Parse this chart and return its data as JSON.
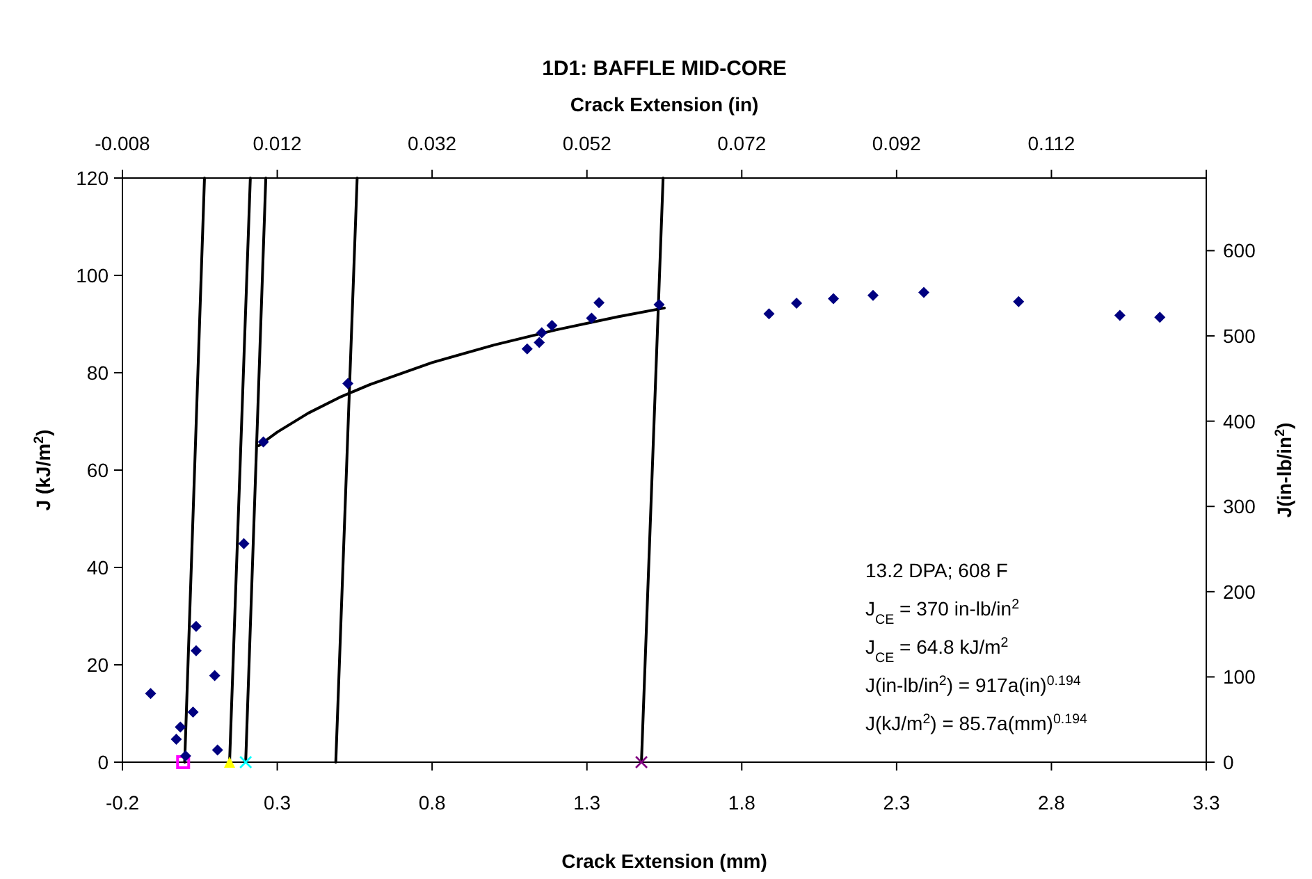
{
  "chart_data": {
    "type": "scatter",
    "title": "1D1: BAFFLE MID-CORE",
    "xlabel": "Crack Extension (mm)",
    "x2label": "Crack Extension (in)",
    "ylabel": "J (kJ/m$^{2}$)",
    "y2label": "J(in-lb/in$^{2}$)",
    "xlim": [
      -0.2,
      3.3
    ],
    "xticks": [
      -0.2,
      0.3,
      0.8,
      1.3,
      1.8,
      2.3,
      2.8,
      3.3
    ],
    "x2lim": [
      -0.008,
      0.132
    ],
    "x2ticks": [
      -0.008,
      0.012,
      0.032,
      0.052,
      0.072,
      0.092,
      0.112,
      {
        "value": 0.132,
        "label": null
      }
    ],
    "ylim": [
      0,
      120
    ],
    "yticks": [
      0,
      20,
      40,
      60,
      80,
      100,
      120
    ],
    "y2lim": [
      0,
      685.2
    ],
    "y2ticks": [
      0,
      100,
      200,
      300,
      400,
      500,
      600
    ],
    "grid": false,
    "marker": "diamond",
    "series": [
      {
        "color": "#000080",
        "x": [
          -0.109,
          -0.026,
          -0.013,
          0.004,
          0.028,
          0.038,
          0.038,
          0.098,
          0.107,
          0.192,
          0.255,
          0.528,
          1.107,
          1.146,
          1.154,
          1.187,
          1.315,
          1.339,
          1.533,
          1.888,
          1.977,
          2.096,
          2.224,
          2.388,
          2.694,
          3.021,
          3.15
        ],
        "values": [
          14.1,
          4.7,
          7.2,
          1.3,
          10.3,
          22.9,
          27.9,
          17.8,
          2.5,
          44.9,
          65.8,
          77.8,
          84.9,
          86.2,
          88.2,
          89.7,
          91.2,
          94.4,
          94.0,
          92.1,
          94.3,
          95.2,
          95.9,
          96.5,
          94.6,
          91.8,
          91.4
        ]
      },
      {
        "type": "line",
        "color": "#000000",
        "marker": "none",
        "x": [
          0.24,
          0.3,
          0.4,
          0.5,
          0.6,
          0.8,
          1.0,
          1.2,
          1.4,
          1.55
        ],
        "values": [
          65.0,
          67.8,
          71.7,
          74.9,
          77.6,
          82.1,
          85.7,
          88.8,
          91.5,
          93.3
        ]
      },
      {
        "type": "line",
        "color": "#000000",
        "marker": "none",
        "x": [
          0.001,
          0.065
        ],
        "values": [
          0,
          120
        ]
      },
      {
        "type": "line",
        "color": "#000000",
        "marker": "none",
        "x": [
          0.146,
          0.213
        ],
        "values": [
          0,
          120
        ]
      },
      {
        "type": "line",
        "color": "#000000",
        "marker": "none",
        "x": [
          0.198,
          0.263
        ],
        "values": [
          0,
          120
        ]
      },
      {
        "type": "line",
        "color": "#000000",
        "marker": "none",
        "x": [
          0.489,
          0.558
        ],
        "values": [
          0,
          120
        ]
      },
      {
        "type": "line",
        "color": "#000000",
        "marker": "none",
        "x": [
          1.476,
          1.546
        ],
        "values": [
          0,
          120
        ]
      },
      {
        "type": "scatter",
        "color": "#ff00ff",
        "marker": "square",
        "x": [
          -0.004
        ],
        "values": [
          0
        ]
      },
      {
        "type": "scatter",
        "color": "#ffff00",
        "marker": "triangle",
        "x": [
          0.146
        ],
        "values": [
          0
        ]
      },
      {
        "type": "scatter",
        "color": "#00ffff",
        "marker": "cross",
        "x": [
          0.198
        ],
        "values": [
          0
        ]
      },
      {
        "type": "scatter",
        "color": "#800080",
        "marker": "cross",
        "x": [
          1.476
        ],
        "values": [
          0
        ]
      }
    ],
    "annotations": [
      "13.2 DPA; 608 F",
      "J$_{CE}$ = 370 in-lb/in$^{2}$",
      "J$_{CE}$ = 64.8 kJ/m$^{2}$",
      "J(in-lb/in$^{2}$) = 917a(in)$^{0.194}$",
      "J(kJ/m$^{2}$) = 85.7a(mm)$^{0.194}$"
    ]
  }
}
